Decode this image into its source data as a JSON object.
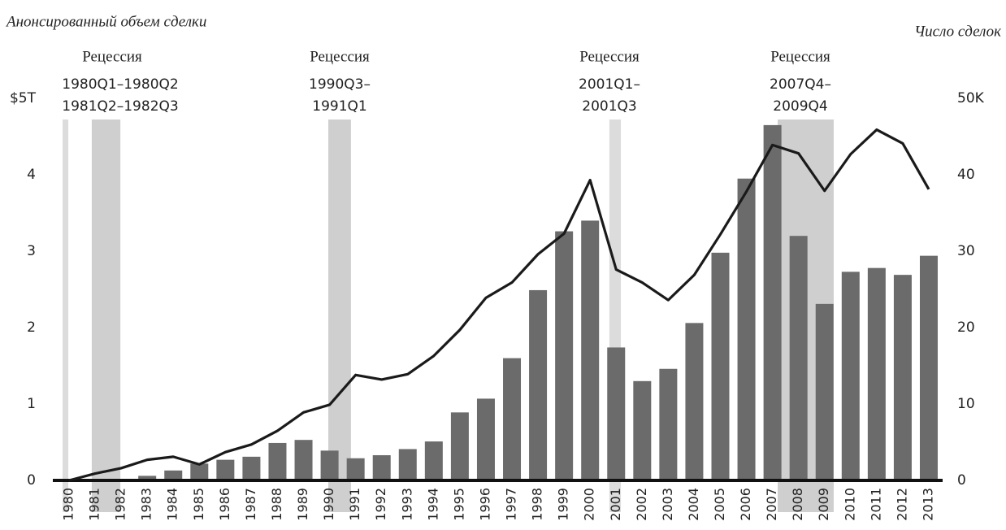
{
  "chart_data": {
    "type": "bar_line",
    "title": "Анонсированный объем сделки",
    "y2_title": "Число сделок",
    "categories": [
      "1980",
      "1981",
      "1982",
      "1983",
      "1984",
      "1985",
      "1986",
      "1987",
      "1988",
      "1989",
      "1990",
      "1991",
      "1992",
      "1993",
      "1994",
      "1995",
      "1996",
      "1997",
      "1998",
      "1999",
      "2000",
      "2001",
      "2002",
      "2003",
      "2004",
      "2005",
      "2006",
      "2007",
      "2008",
      "2009",
      "2010",
      "2011",
      "2012",
      "2013"
    ],
    "series": [
      {
        "name": "Анонсированный объем сделки",
        "color": "#6b6b6b",
        "kind": "bar",
        "values": [
          0,
          0.01,
          0.02,
          0.06,
          0.13,
          0.22,
          0.27,
          0.31,
          0.49,
          0.53,
          0.39,
          0.29,
          0.33,
          0.41,
          0.51,
          0.89,
          1.07,
          1.6,
          2.49,
          3.26,
          3.4,
          1.74,
          1.3,
          1.46,
          2.06,
          2.98,
          3.95,
          4.65,
          3.2,
          2.31,
          2.73,
          2.78,
          2.69,
          2.94
        ]
      },
      {
        "name": "Число сделок",
        "color": "#1a1a1a",
        "kind": "line",
        "axis": "y2",
        "values": [
          0,
          0.9,
          1.6,
          2.7,
          3.1,
          2.1,
          3.7,
          4.7,
          6.5,
          8.9,
          9.9,
          13.8,
          13.2,
          13.9,
          16.3,
          19.7,
          23.9,
          25.9,
          29.6,
          32.3,
          39.3,
          27.6,
          25.9,
          23.6,
          26.9,
          32.2,
          37.8,
          43.9,
          42.8,
          37.9,
          42.7,
          45.9,
          44.1,
          38.1
        ]
      }
    ],
    "ylim": [
      0,
      5
    ],
    "yticks": [
      0,
      1,
      2,
      3,
      4,
      {
        "value": 5,
        "label": "$5T"
      }
    ],
    "y2lim": [
      0,
      50
    ],
    "y2ticks": [
      0,
      10,
      20,
      30,
      40,
      {
        "value": 50,
        "label": "50K"
      }
    ],
    "recessions": [
      {
        "label": "Рецессия",
        "periods": [
          "1980Q1–1980Q2",
          "1981Q2–1982Q3"
        ],
        "spans": [
          [
            1979.75,
            1979.97
          ],
          [
            1980.87,
            1981.97
          ]
        ]
      },
      {
        "label": "Рецессия",
        "periods": [
          "1990Q3–",
          "1991Q1"
        ],
        "spans": [
          [
            1989.95,
            1990.82
          ]
        ]
      },
      {
        "label": "Рецессия",
        "periods": [
          "2001Q1–",
          "2001Q3"
        ],
        "spans": [
          [
            2000.74,
            2001.18
          ]
        ]
      },
      {
        "label": "Рецессия",
        "periods": [
          "2007Q4–",
          "2009Q4"
        ],
        "spans": [
          [
            2007.2,
            2009.35
          ]
        ]
      }
    ]
  }
}
